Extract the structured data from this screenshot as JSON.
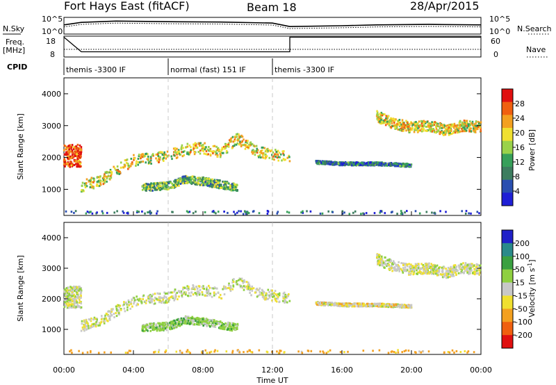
{
  "header": {
    "station": "Fort Hays East (fitACF)",
    "beam": "Beam 18",
    "date": "28/Apr/2015"
  },
  "left_labels": {
    "nsky": "N.Sky",
    "freq_line1": "Freq.",
    "freq_line2": "[MHz]",
    "cpid": "CPID"
  },
  "right_labels": {
    "nsearch": "N.Search",
    "nave": "Nave"
  },
  "noise_axis": {
    "left_ticks": [
      "10^5",
      "10^0"
    ],
    "right_ticks": [
      "10^5",
      "10^0"
    ]
  },
  "freq_axis": {
    "left_ticks": [
      "18",
      "8"
    ],
    "right_ticks": [
      "60",
      "0"
    ]
  },
  "cpid_segments": [
    {
      "label": "themis -3300 IF",
      "start_h": 0,
      "end_h": 6
    },
    {
      "label": "normal (fast) 151 IF",
      "start_h": 6,
      "end_h": 12
    },
    {
      "label": "themis -3300 IF",
      "start_h": 12,
      "end_h": 24
    }
  ],
  "time_axis": {
    "label": "Time UT",
    "ticks": [
      "00:00",
      "04:00",
      "08:00",
      "12:00",
      "16:00",
      "20:00",
      "00:00"
    ]
  },
  "power_panel": {
    "ylabel": "Slant Range [km]",
    "yticks": [
      "4000",
      "3000",
      "2000",
      "1000"
    ],
    "colorbar_label": "Power [dB]",
    "colorbar_ticks": [
      "28",
      "24",
      "20",
      "16",
      "12",
      "8",
      "4"
    ]
  },
  "velocity_panel": {
    "ylabel": "Slant Range [km]",
    "yticks": [
      "4000",
      "3000",
      "2000",
      "1000"
    ],
    "colorbar_label": "Velocity [m s",
    "colorbar_label_sup": "-1",
    "colorbar_label_end": "]",
    "colorbar_ticks": [
      "200",
      "100",
      "50",
      "15",
      "-15",
      "-50",
      "-100",
      "-200"
    ]
  },
  "chart_data": {
    "type": "heatmap",
    "x_range_hours": [
      0,
      24
    ],
    "y_range_km": [
      180,
      4500
    ],
    "time_tick_hours": [
      0,
      4,
      8,
      12,
      16,
      20,
      24
    ],
    "range_ticks_km": [
      4000,
      3000,
      2000,
      1000
    ],
    "power_scale_db": [
      0,
      30
    ],
    "velocity_scale_ms": [
      -250,
      250
    ],
    "power_colors": [
      "#1f1fd6",
      "#2a4fb0",
      "#3d7d5f",
      "#37a05a",
      "#9ad24a",
      "#f0e030",
      "#f3a020",
      "#f06010",
      "#e01010"
    ],
    "velocity_colors": [
      "#e01010",
      "#f06010",
      "#f3a020",
      "#f0e030",
      "#c8c8c8",
      "#8fd040",
      "#3aa040",
      "#2a8a8a",
      "#2020c8"
    ],
    "noise_sky": [
      {
        "h": 0,
        "v": 0.55
      },
      {
        "h": 1,
        "v": 0.7
      },
      {
        "h": 3,
        "v": 0.78
      },
      {
        "h": 6,
        "v": 0.74
      },
      {
        "h": 9,
        "v": 0.72
      },
      {
        "h": 12,
        "v": 0.66
      },
      {
        "h": 13,
        "v": 0.45
      },
      {
        "h": 16,
        "v": 0.5
      },
      {
        "h": 18,
        "v": 0.55
      },
      {
        "h": 21,
        "v": 0.58
      },
      {
        "h": 24,
        "v": 0.55
      }
    ],
    "frequency_mhz": [
      {
        "h": 0,
        "v": 17.5
      },
      {
        "h": 1,
        "v": 10.5
      },
      {
        "h": 13,
        "v": 10.5
      },
      {
        "h": 13,
        "v": 17.5
      },
      {
        "h": 24,
        "v": 17.5
      }
    ],
    "scatter_regions": [
      {
        "name": "early-band",
        "t0": 0.0,
        "t1": 1.0,
        "r0": 1700,
        "r1": 2400,
        "p": 26,
        "v": 0
      },
      {
        "name": "main-band",
        "t0": 1.0,
        "t1": 13.0,
        "path": [
          [
            1.0,
            1100
          ],
          [
            2.0,
            1250
          ],
          [
            3.0,
            1600
          ],
          [
            4.0,
            1900
          ],
          [
            6.0,
            2050
          ],
          [
            7.0,
            2250
          ],
          [
            8.0,
            2300
          ],
          [
            9.0,
            2150
          ],
          [
            10.0,
            2600
          ],
          [
            11.0,
            2200
          ],
          [
            13.0,
            2000
          ]
        ],
        "width": 350,
        "p": 18,
        "v": 0
      },
      {
        "name": "lower-band",
        "t0": 4.5,
        "t1": 10.0,
        "path": [
          [
            4.5,
            1050
          ],
          [
            6.0,
            1100
          ],
          [
            7.0,
            1300
          ],
          [
            8.0,
            1250
          ],
          [
            9.0,
            1150
          ],
          [
            10.0,
            1050
          ]
        ],
        "width": 250,
        "p": 12,
        "v": 30
      },
      {
        "name": "late-band",
        "t0": 18.0,
        "t1": 24.0,
        "path": [
          [
            18.0,
            3300
          ],
          [
            19.0,
            3050
          ],
          [
            20.0,
            2950
          ],
          [
            21.0,
            3000
          ],
          [
            22.0,
            2850
          ],
          [
            23.0,
            3000
          ],
          [
            24.0,
            2950
          ]
        ],
        "width": 350,
        "p": 18,
        "v": 0
      },
      {
        "name": "late-mid",
        "t0": 14.5,
        "t1": 20.0,
        "path": [
          [
            14.5,
            1850
          ],
          [
            16.0,
            1800
          ],
          [
            18.0,
            1800
          ],
          [
            20.0,
            1750
          ]
        ],
        "width": 100,
        "p": 8,
        "v": -10
      },
      {
        "name": "ground-strip",
        "t0": 0.0,
        "t1": 24.0,
        "path": [
          [
            0.0,
            250
          ],
          [
            24.0,
            250
          ]
        ],
        "width": 150,
        "p": 6,
        "v": -40
      }
    ]
  }
}
